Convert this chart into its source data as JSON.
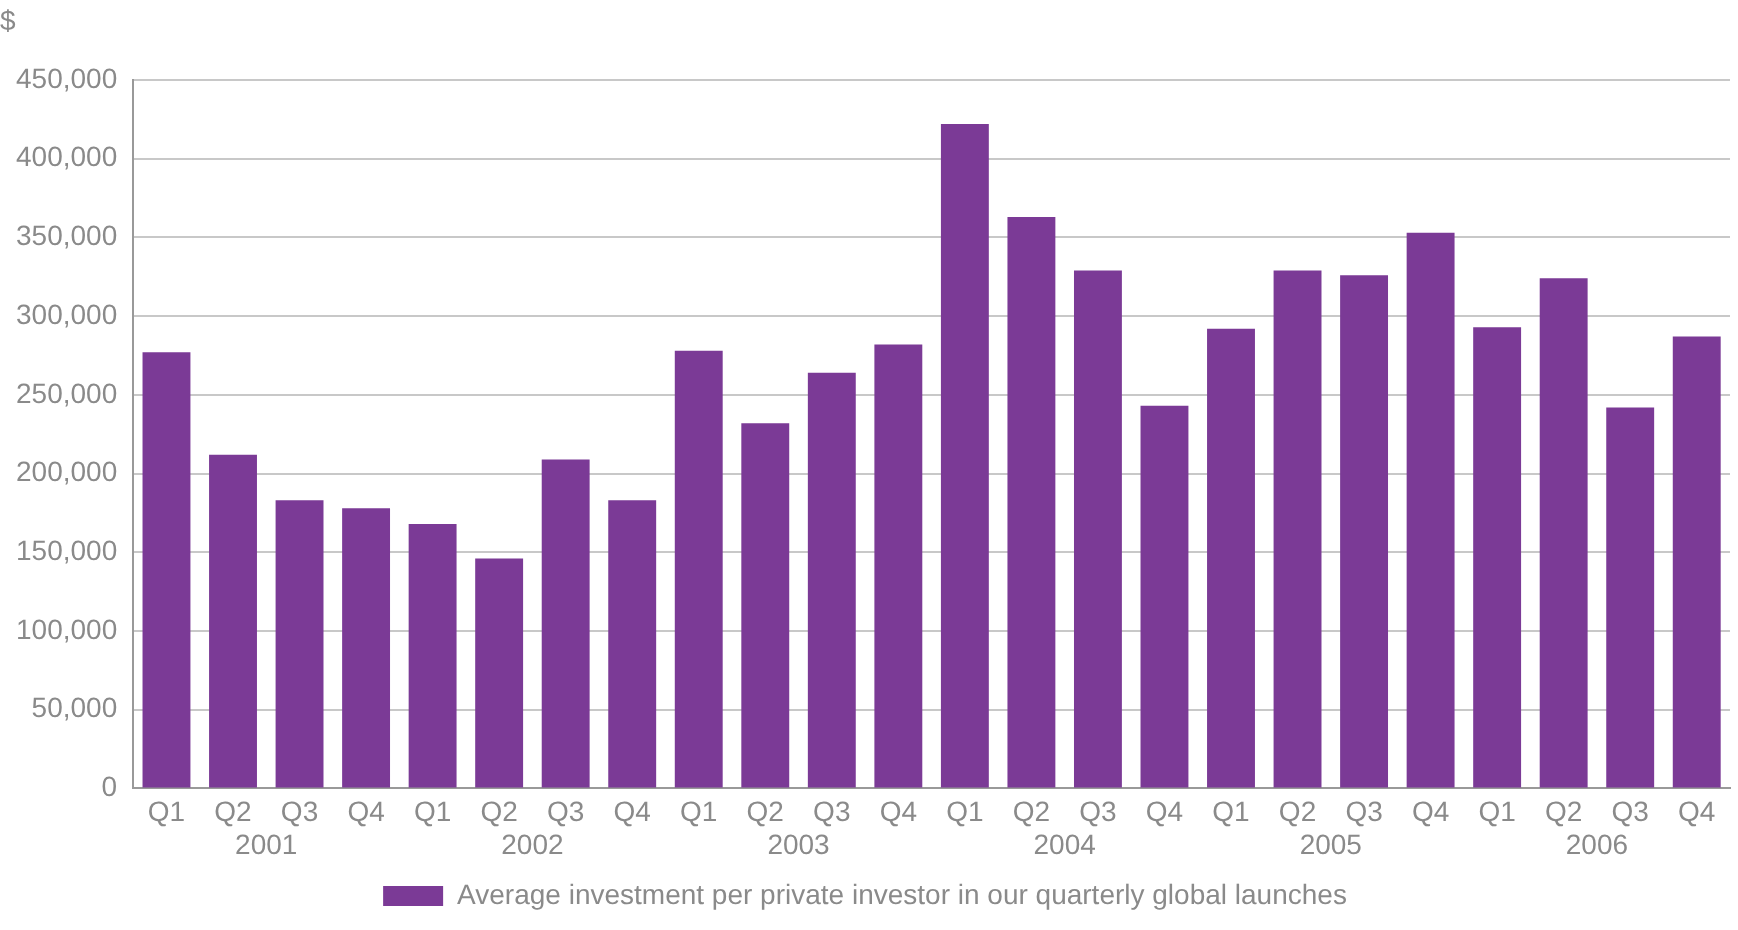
{
  "chart_data": {
    "type": "bar",
    "ylabel": "$",
    "categories": [
      "Q1",
      "Q2",
      "Q3",
      "Q4",
      "Q1",
      "Q2",
      "Q3",
      "Q4",
      "Q1",
      "Q2",
      "Q3",
      "Q4",
      "Q1",
      "Q2",
      "Q3",
      "Q4",
      "Q1",
      "Q2",
      "Q3",
      "Q4",
      "Q1",
      "Q2",
      "Q3",
      "Q4"
    ],
    "series": [
      {
        "name": "Average investment per private investor in our quarterly global launches",
        "color": "#7b3a96",
        "values": [
          277000,
          212000,
          183000,
          178000,
          168000,
          146000,
          209000,
          183000,
          278000,
          232000,
          264000,
          282000,
          422000,
          363000,
          329000,
          243000,
          292000,
          329000,
          326000,
          353000,
          293000,
          324000,
          242000,
          287000
        ]
      }
    ],
    "annotations": [
      "2001",
      "2002",
      "2003",
      "2004",
      "2005",
      "2006"
    ],
    "ylim": [
      0,
      450000
    ],
    "yticks": [
      {
        "value": 0,
        "label": "0"
      },
      {
        "value": 50000,
        "label": "50,000"
      },
      {
        "value": 100000,
        "label": "100,000"
      },
      {
        "value": 150000,
        "label": "150,000"
      },
      {
        "value": 200000,
        "label": "200,000"
      },
      {
        "value": 250000,
        "label": "250,000"
      },
      {
        "value": 300000,
        "label": "300,000"
      },
      {
        "value": 350000,
        "label": "350,000"
      },
      {
        "value": 400000,
        "label": "400,000"
      },
      {
        "value": 450000,
        "label": "450,000"
      }
    ],
    "grid": "y",
    "legend": "bottom"
  }
}
